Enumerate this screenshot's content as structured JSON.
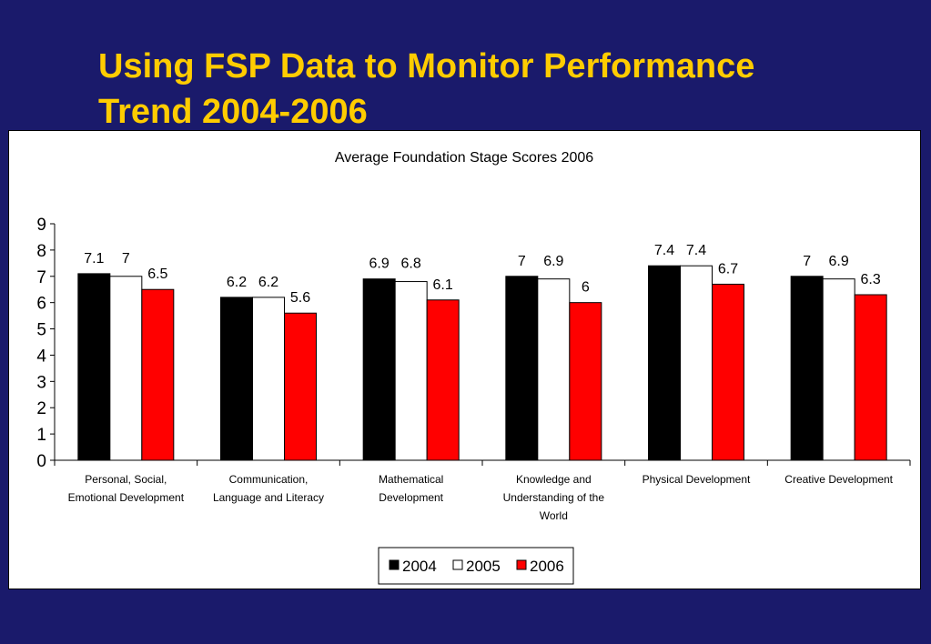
{
  "slide": {
    "title_line1": "Using FSP Data to Monitor Performance",
    "title_line2": "Trend 2004-2006"
  },
  "colors": {
    "background": "#1a1a6b",
    "title": "#ffcc00",
    "series": [
      "#000000",
      "#ffffff",
      "#ff0000"
    ]
  },
  "chart_data": {
    "type": "bar",
    "title": "Average Foundation Stage Scores 2006",
    "xlabel": "",
    "ylabel": "",
    "ylim": [
      0,
      9
    ],
    "yticks": [
      0,
      1,
      2,
      3,
      4,
      5,
      6,
      7,
      8,
      9
    ],
    "grid": false,
    "legend_position": "bottom",
    "categories": [
      [
        "Personal, Social,",
        "Emotional Development"
      ],
      [
        "Communication,",
        "Language and Literacy"
      ],
      [
        "Mathematical",
        "Development"
      ],
      [
        "Knowledge and",
        "Understanding of the",
        "World"
      ],
      [
        "Physical Development"
      ],
      [
        "Creative Development"
      ]
    ],
    "series": [
      {
        "name": "2004",
        "values": [
          7.1,
          6.2,
          6.9,
          7,
          7.4,
          7
        ]
      },
      {
        "name": "2005",
        "values": [
          7,
          6.2,
          6.8,
          6.9,
          7.4,
          6.9
        ]
      },
      {
        "name": "2006",
        "values": [
          6.5,
          5.6,
          6.1,
          6,
          6.7,
          6.3
        ]
      }
    ]
  }
}
